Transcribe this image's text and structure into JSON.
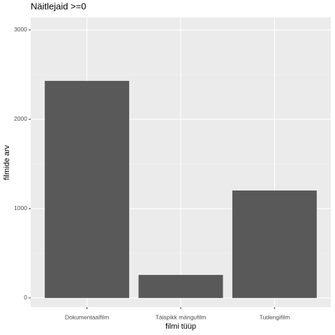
{
  "chart_data": {
    "type": "bar",
    "title": "Näitlejaid >=0",
    "x_label": "filmi tüüp",
    "y_label": "filmide arv",
    "categories": [
      "Dokumentaalfilm",
      "Täispikk mängufilm",
      "Tudengifilm"
    ],
    "values": [
      2430,
      258,
      1203
    ],
    "color": "#595959",
    "ylim": [
      -102,
      3140
    ],
    "yticks": [
      0,
      1000,
      2000,
      3000
    ],
    "grid": true
  }
}
